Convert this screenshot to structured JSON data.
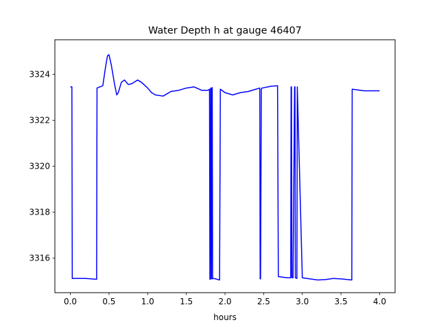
{
  "chart_data": {
    "type": "line",
    "title": "Water Depth h at gauge 46407",
    "xlabel": "hours",
    "ylabel": "",
    "xlim": [
      -0.2,
      4.2
    ],
    "ylim": [
      3314.5,
      3325.5
    ],
    "xticks": [
      0.0,
      0.5,
      1.0,
      1.5,
      2.0,
      2.5,
      3.0,
      3.5,
      4.0
    ],
    "xtick_labels": [
      "0.0",
      "0.5",
      "1.0",
      "1.5",
      "2.0",
      "2.5",
      "3.0",
      "3.5",
      "4.0"
    ],
    "yticks": [
      3316,
      3318,
      3320,
      3322,
      3324
    ],
    "ytick_labels": [
      "3316",
      "3318",
      "3320",
      "3322",
      "3324"
    ],
    "grid": false,
    "legend": "none",
    "series": [
      {
        "color": "#0000ff",
        "x": [
          0.0,
          0.02,
          0.025,
          0.2,
          0.34,
          0.345,
          0.42,
          0.45,
          0.48,
          0.5,
          0.53,
          0.57,
          0.6,
          0.62,
          0.66,
          0.7,
          0.75,
          0.8,
          0.87,
          0.92,
          1.0,
          1.05,
          1.1,
          1.2,
          1.3,
          1.4,
          1.5,
          1.6,
          1.7,
          1.78,
          1.8,
          1.805,
          1.81,
          1.815,
          1.82,
          1.825,
          1.83,
          1.835,
          1.84,
          1.85,
          1.88,
          1.93,
          1.94,
          2.0,
          2.1,
          2.2,
          2.3,
          2.4,
          2.45,
          2.455,
          2.46,
          2.47,
          2.48,
          2.6,
          2.68,
          2.69,
          2.8,
          2.85,
          2.855,
          2.86,
          2.865,
          2.87,
          2.88,
          2.9,
          2.905,
          2.91,
          2.93,
          2.935,
          3.0,
          3.1,
          3.2,
          3.3,
          3.4,
          3.5,
          3.64,
          3.645,
          3.8,
          4.0
        ],
        "y": [
          3323.45,
          3323.45,
          3315.12,
          3315.12,
          3315.08,
          3323.4,
          3323.5,
          3324.2,
          3324.8,
          3324.85,
          3324.4,
          3323.6,
          3323.1,
          3323.2,
          3323.65,
          3323.75,
          3323.55,
          3323.6,
          3323.75,
          3323.65,
          3323.4,
          3323.2,
          3323.1,
          3323.05,
          3323.25,
          3323.3,
          3323.4,
          3323.45,
          3323.3,
          3323.3,
          3323.35,
          3315.08,
          3315.08,
          3323.4,
          3323.4,
          3315.1,
          3323.38,
          3323.42,
          3315.1,
          3315.12,
          3315.1,
          3315.05,
          3323.35,
          3323.2,
          3323.1,
          3323.2,
          3323.25,
          3323.35,
          3323.4,
          3315.1,
          3315.1,
          3323.35,
          3323.4,
          3323.48,
          3323.5,
          3315.2,
          3315.15,
          3315.15,
          3323.45,
          3323.45,
          3315.15,
          3315.15,
          3315.15,
          3323.45,
          3323.45,
          3315.15,
          3315.12,
          3323.45,
          3315.15,
          3315.1,
          3315.05,
          3315.07,
          3315.12,
          3315.1,
          3315.05,
          3323.35,
          3323.28,
          3323.28
        ]
      }
    ]
  }
}
